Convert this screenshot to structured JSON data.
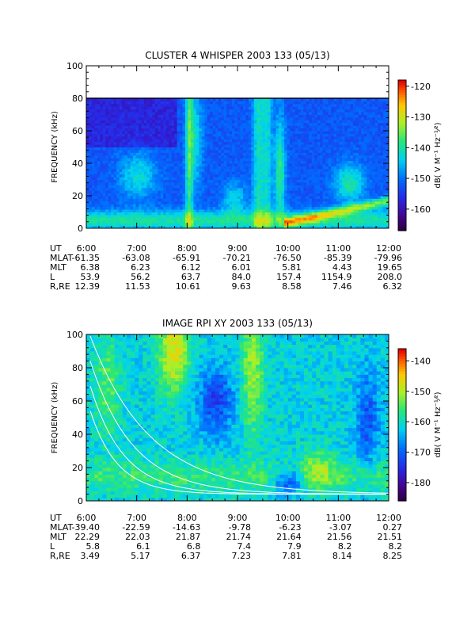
{
  "chart_data": [
    {
      "type": "heatmap",
      "title": "CLUSTER 4 WHISPER 2003 133 (05/13)",
      "ylabel": "FREQUENCY (kHz)",
      "ylim": [
        0,
        100
      ],
      "y_ticks": [
        "0",
        "20",
        "40",
        "60",
        "80",
        "100"
      ],
      "x_ticks": [
        "6:00",
        "7:00",
        "8:00",
        "9:00",
        "10:00",
        "11:00",
        "12:00"
      ],
      "data_frequency_max_khz": 80,
      "colorbar": {
        "label": "dB( V M⁻¹ Hz⁻¹⁄²)",
        "range": [
          -167,
          -118
        ],
        "ticks": [
          "-120",
          "-130",
          "-140",
          "-150",
          "-160"
        ]
      },
      "ephemeris": [
        {
          "label": "UT",
          "values": [
            "6:00",
            "7:00",
            "8:00",
            "9:00",
            "10:00",
            "11:00",
            "12:00"
          ]
        },
        {
          "label": "MLAT",
          "values": [
            "-61.35",
            "-63.08",
            "-65.91",
            "-70.21",
            "-76.50",
            "-85.39",
            "-79.96"
          ]
        },
        {
          "label": "MLT",
          "values": [
            "6.38",
            "6.23",
            "6.12",
            "6.01",
            "5.81",
            "4.43",
            "19.65"
          ]
        },
        {
          "label": "L",
          "values": [
            "53.9",
            "56.2",
            "63.7",
            "84.0",
            "157.4",
            "1154.9",
            "208.0"
          ]
        },
        {
          "label": "R,RE",
          "values": [
            "12.39",
            "11.53",
            "10.61",
            "9.63",
            "8.58",
            "7.46",
            "6.32"
          ]
        }
      ]
    },
    {
      "type": "heatmap",
      "title": "IMAGE RPI XY 2003 133 (05/13)",
      "ylabel": "FREQUENCY (kHz)",
      "ylim": [
        0,
        100
      ],
      "y_ticks": [
        "0",
        "20",
        "40",
        "60",
        "80",
        "100"
      ],
      "x_ticks": [
        "6:00",
        "7:00",
        "8:00",
        "9:00",
        "10:00",
        "11:00",
        "12:00"
      ],
      "colorbar": {
        "label": "dB( V M⁻¹ Hz⁻¹⁄²)",
        "range": [
          -186,
          -136
        ],
        "ticks": [
          "-140",
          "-150",
          "-160",
          "-170",
          "-180"
        ]
      },
      "ephemeris": [
        {
          "label": "UT",
          "values": [
            "6:00",
            "7:00",
            "8:00",
            "9:00",
            "10:00",
            "11:00",
            "12:00"
          ]
        },
        {
          "label": "MLAT",
          "values": [
            "-39.40",
            "-22.59",
            "-14.63",
            "-9.78",
            "-6.23",
            "-3.07",
            "0.27"
          ]
        },
        {
          "label": "MLT",
          "values": [
            "22.29",
            "22.03",
            "21.87",
            "21.74",
            "21.64",
            "21.56",
            "21.51"
          ]
        },
        {
          "label": "L",
          "values": [
            "5.8",
            "6.1",
            "6.8",
            "7.4",
            "7.9",
            "8.2",
            "8.2"
          ]
        },
        {
          "label": "R,RE",
          "values": [
            "3.49",
            "5.17",
            "6.37",
            "7.23",
            "7.81",
            "8.14",
            "8.25"
          ]
        }
      ]
    }
  ]
}
